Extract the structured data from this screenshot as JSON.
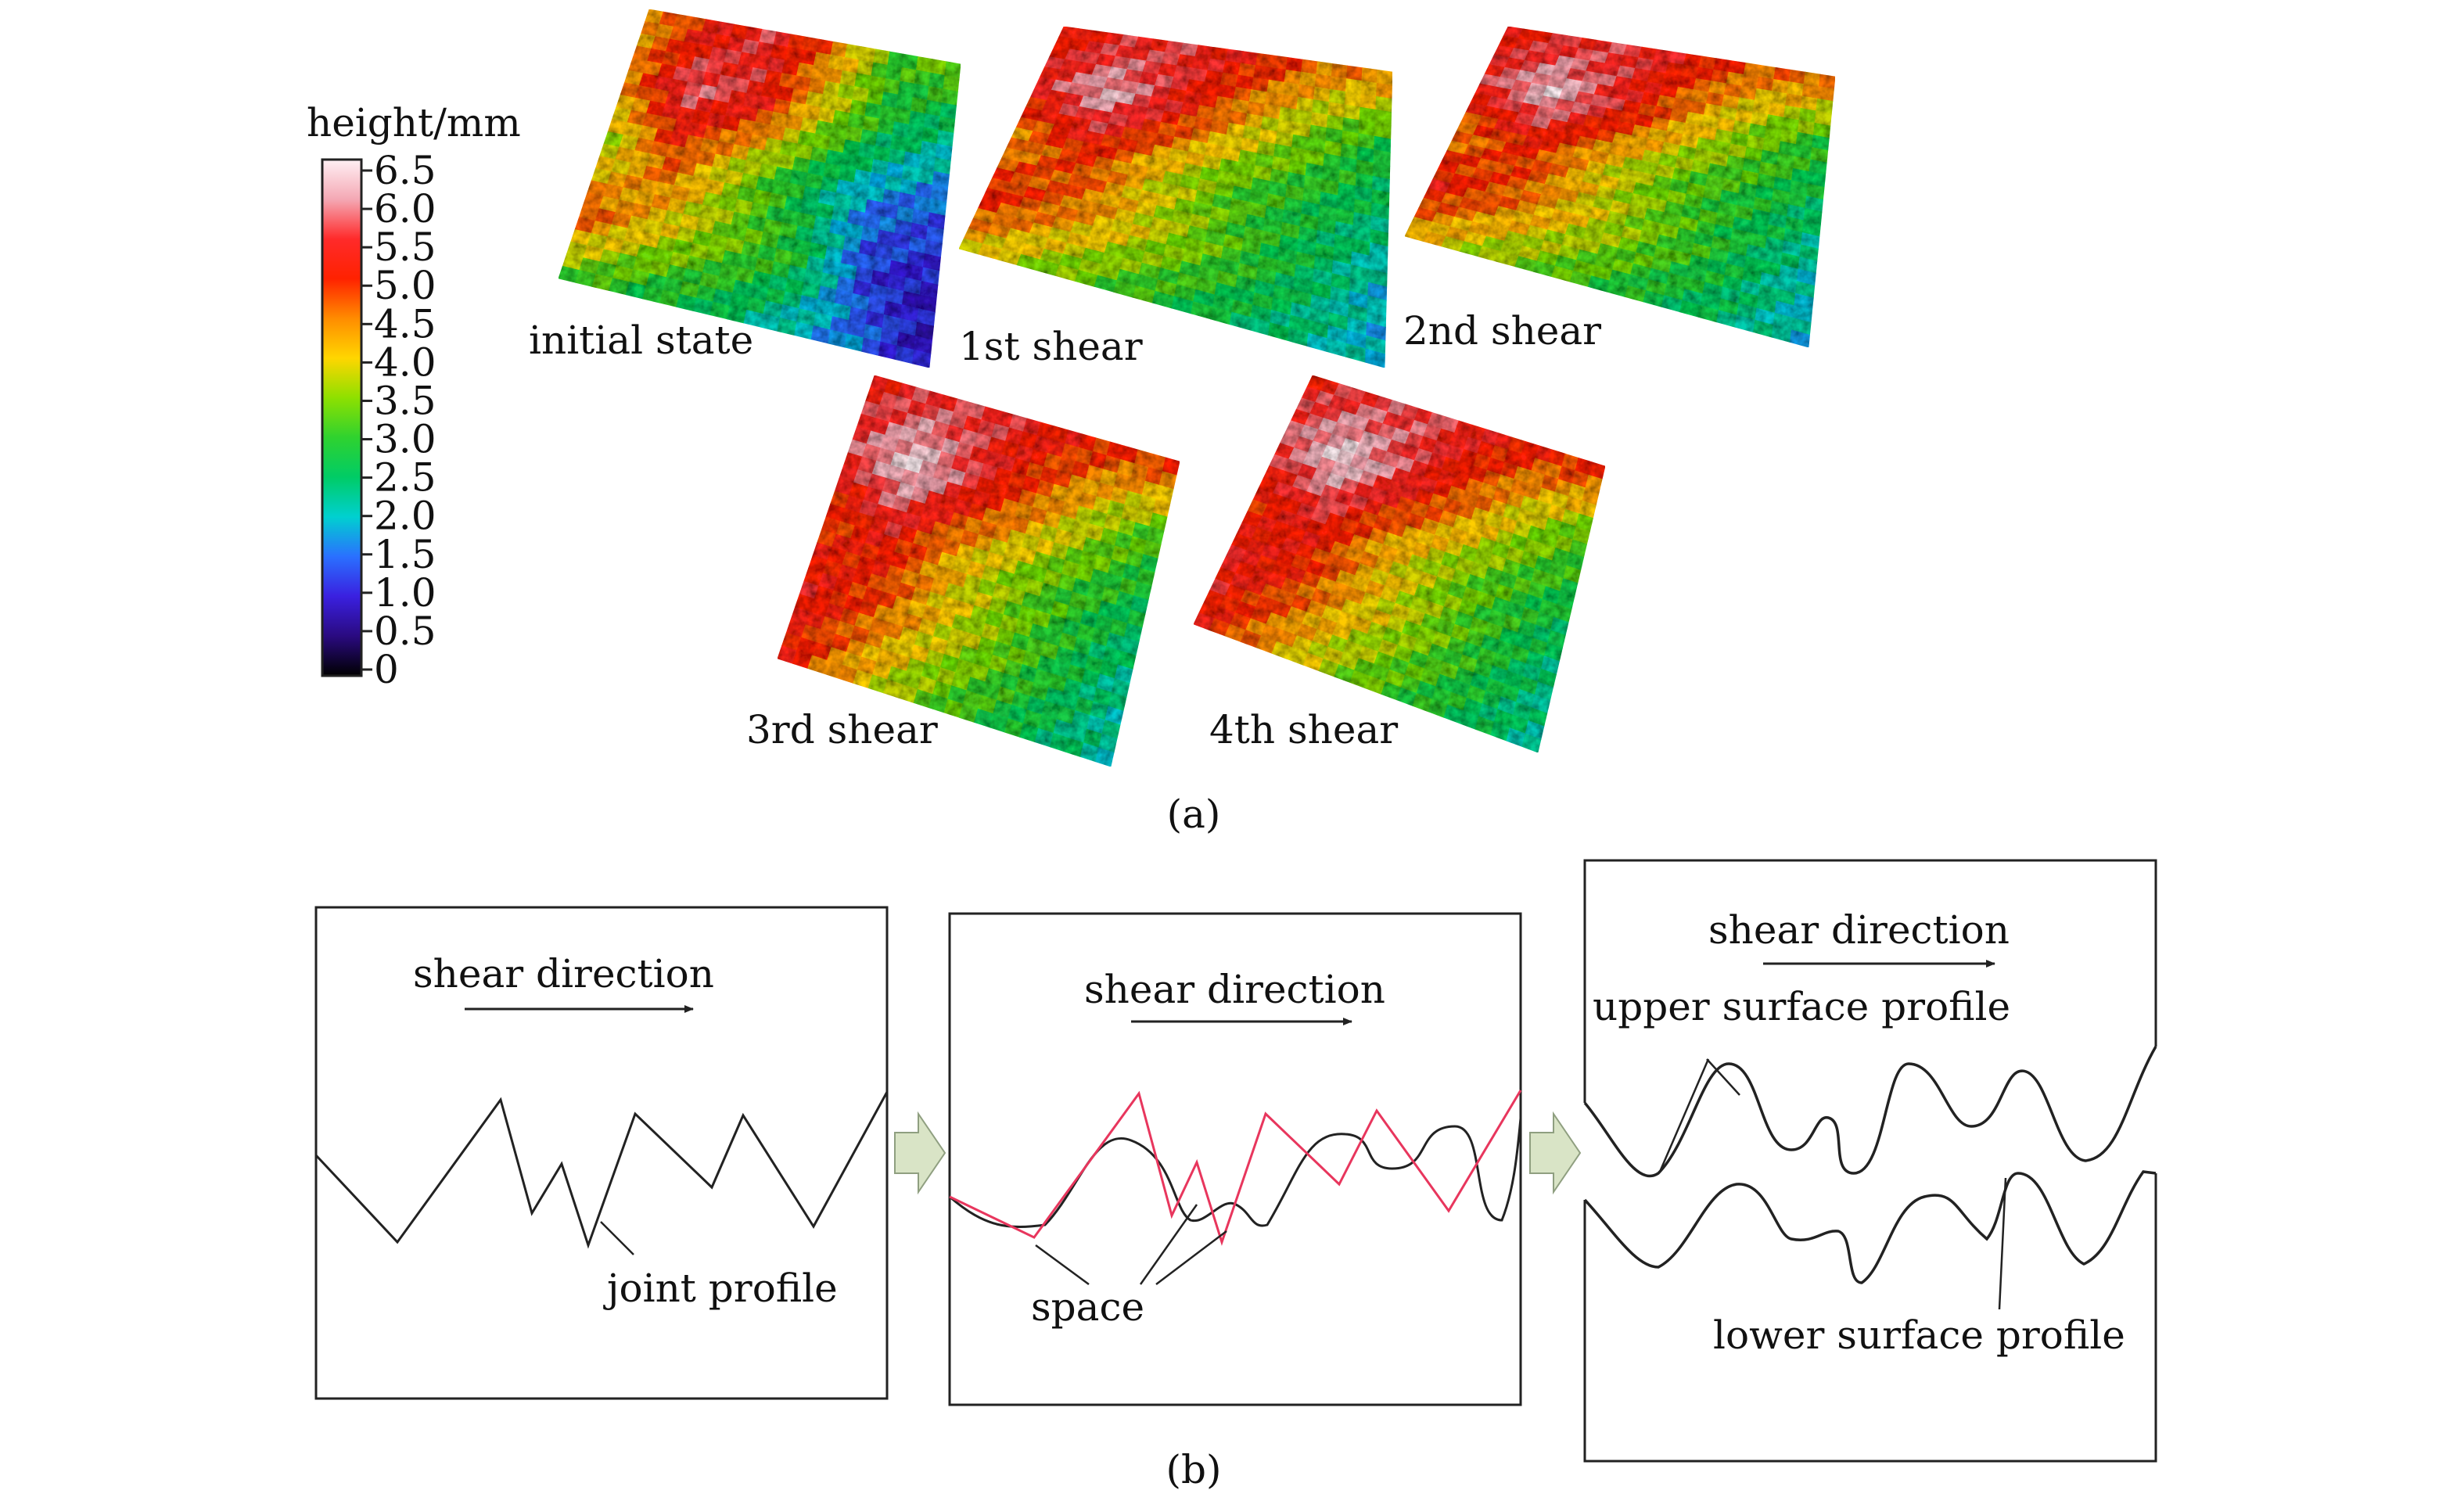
{
  "panel_a": {
    "colorbar": {
      "title": "height/mm",
      "ticks": [
        "6.5",
        "6.0",
        "5.5",
        "5.0",
        "4.5",
        "4.0",
        "3.5",
        "3.0",
        "2.5",
        "2.0",
        "1.5",
        "1.0",
        "0.5",
        "0"
      ],
      "gradient": [
        "#fff0f4",
        "#f4a8b4",
        "#ff2a2a",
        "#ff2200",
        "#ff8c00",
        "#ffd600",
        "#8ee000",
        "#2fd22f",
        "#00cc66",
        "#00d0d0",
        "#2a70ff",
        "#3a20e0",
        "#2a0a80",
        "#000000"
      ]
    },
    "surfaces": [
      {
        "label": "initial state",
        "heights": [
          4.2,
          5.1,
          5.6,
          4.6,
          3.1,
          3.6,
          4.4,
          5.8,
          5.4,
          3.8,
          2.8,
          2.2,
          3.5,
          4.8,
          3.6,
          2.6,
          1.6,
          1.4,
          4.9,
          4.0,
          3.4,
          2.9,
          1.2,
          0.9,
          3.1,
          2.8,
          2.6,
          2.0,
          1.6,
          0.8
        ]
      },
      {
        "label": "1st shear",
        "heights": [
          5.0,
          5.4,
          5.6,
          5.2,
          4.6,
          4.6,
          5.4,
          6.2,
          5.3,
          4.2,
          3.4,
          2.8,
          4.3,
          5.0,
          3.9,
          3.2,
          2.8,
          2.4,
          5.2,
          4.5,
          3.8,
          3.2,
          2.6,
          1.9,
          4.0,
          3.4,
          3.0,
          2.6,
          2.3,
          1.8
        ]
      },
      {
        "label": "2nd shear",
        "heights": [
          5.1,
          5.4,
          5.6,
          5.2,
          4.7,
          4.8,
          5.5,
          6.3,
          5.4,
          4.3,
          3.5,
          2.9,
          4.4,
          5.1,
          4.0,
          3.3,
          2.9,
          2.5,
          5.3,
          4.6,
          3.9,
          3.3,
          2.7,
          2.0,
          4.1,
          3.5,
          3.1,
          2.7,
          2.4,
          1.9
        ]
      },
      {
        "label": "3rd shear",
        "heights": [
          5.3,
          5.5,
          5.6,
          5.3,
          5.0,
          5.0,
          5.6,
          6.4,
          5.5,
          4.6,
          3.7,
          3.1,
          4.8,
          5.3,
          4.2,
          3.5,
          3.0,
          2.6,
          5.4,
          4.8,
          4.0,
          3.4,
          2.8,
          2.2,
          5.2,
          4.2,
          3.4,
          2.9,
          2.5,
          2.1
        ]
      },
      {
        "label": "4th shear",
        "heights": [
          5.3,
          5.5,
          5.7,
          5.4,
          5.1,
          5.1,
          5.7,
          6.4,
          5.6,
          4.7,
          3.8,
          3.2,
          4.9,
          5.4,
          4.3,
          3.6,
          3.1,
          2.7,
          5.5,
          4.9,
          4.1,
          3.5,
          2.9,
          2.3,
          5.3,
          4.3,
          3.5,
          3.0,
          2.6,
          2.2
        ]
      }
    ],
    "caption": "(a)"
  },
  "panel_b": {
    "boxes": [
      {
        "arrow_text": "shear direction",
        "labels": [
          "joint profile"
        ]
      },
      {
        "arrow_text": "shear direction",
        "labels": [
          "space"
        ]
      },
      {
        "arrow_text": "shear direction",
        "labels": [
          "upper surface profile",
          "lower surface profile"
        ]
      }
    ],
    "profile_colors": {
      "original": "#222222",
      "sheared": "#e8365d"
    },
    "step_arrow_color": "#d9e4c6",
    "caption": "(b)"
  }
}
